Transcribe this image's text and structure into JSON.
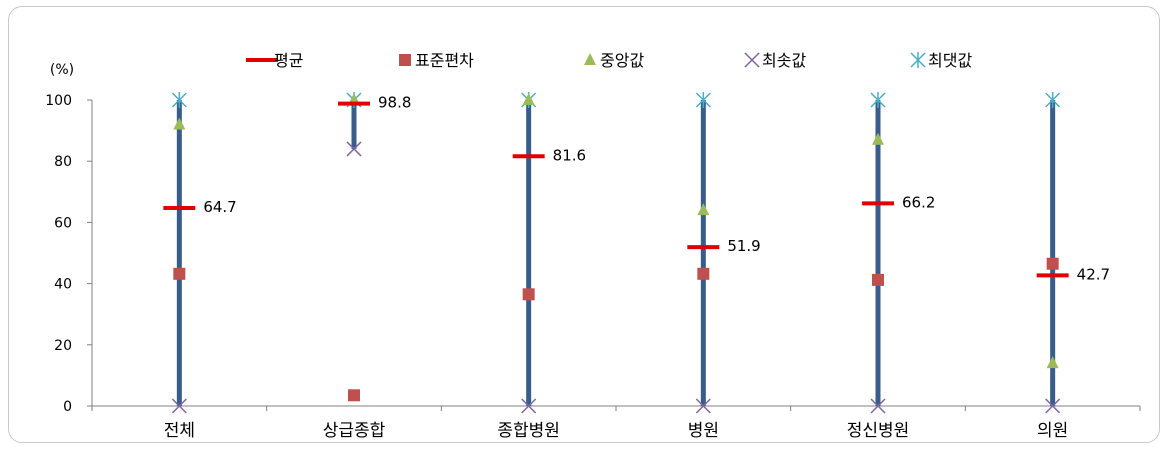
{
  "chart_data": {
    "type": "scatter",
    "ylabel": "(%)",
    "ylim": [
      0,
      100
    ],
    "yticks": [
      0,
      20,
      40,
      60,
      80,
      100
    ],
    "categories": [
      "전체",
      "상급종합",
      "종합병원",
      "병원",
      "정신병원",
      "의원"
    ],
    "legend_position": "top",
    "series": [
      {
        "name": "평균",
        "marker": "dash",
        "color": "#e00000",
        "values": [
          64.7,
          98.8,
          81.6,
          51.9,
          66.2,
          42.7
        ],
        "labels": [
          "64.7",
          "98.8",
          "81.6",
          "51.9",
          "66.2",
          "42.7"
        ]
      },
      {
        "name": "표준편차",
        "marker": "square",
        "color": "#c0504d",
        "values": [
          43.2,
          3.5,
          36.5,
          43.2,
          41.2,
          46.5
        ]
      },
      {
        "name": "중앙값",
        "marker": "triangle",
        "color": "#9bbb59",
        "values": [
          92.0,
          100.0,
          100.0,
          64.0,
          87.0,
          14.0
        ]
      },
      {
        "name": "최솟값",
        "marker": "x",
        "color": "#8064a2",
        "values": [
          0,
          84.0,
          0,
          0,
          0,
          0
        ]
      },
      {
        "name": "최댓값",
        "marker": "star",
        "color": "#4bacc6",
        "values": [
          100,
          100,
          100,
          100,
          100,
          100
        ]
      }
    ],
    "range_line_color": "#385d8a"
  }
}
